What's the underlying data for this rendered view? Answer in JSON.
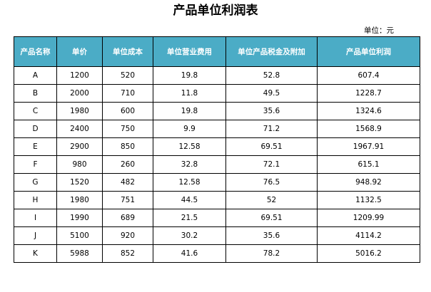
{
  "title": "产品单位利润表",
  "unit_note": "单位：元",
  "table": {
    "headers": [
      "产品名称",
      "单价",
      "单位成本",
      "单位营业费用",
      "单位产品税金及附加",
      "产品单位利润"
    ],
    "rows": [
      [
        "A",
        "1200",
        "520",
        "19.8",
        "52.8",
        "607.4"
      ],
      [
        "B",
        "2000",
        "710",
        "11.8",
        "49.5",
        "1228.7"
      ],
      [
        "C",
        "1980",
        "600",
        "19.8",
        "35.6",
        "1324.6"
      ],
      [
        "D",
        "2400",
        "750",
        "9.9",
        "71.2",
        "1568.9"
      ],
      [
        "E",
        "2900",
        "850",
        "12.58",
        "69.51",
        "1967.91"
      ],
      [
        "F",
        "980",
        "260",
        "32.8",
        "72.1",
        "615.1"
      ],
      [
        "G",
        "1520",
        "482",
        "12.58",
        "76.5",
        "948.92"
      ],
      [
        "H",
        "1980",
        "751",
        "44.5",
        "52",
        "1132.5"
      ],
      [
        "I",
        "1990",
        "689",
        "21.5",
        "69.51",
        "1209.99"
      ],
      [
        "J",
        "5100",
        "920",
        "30.2",
        "35.6",
        "4114.2"
      ],
      [
        "K",
        "5988",
        "852",
        "41.6",
        "78.2",
        "5016.2"
      ]
    ]
  },
  "colors": {
    "header_background": "#4bacc6",
    "header_text": "#ffffff"
  }
}
